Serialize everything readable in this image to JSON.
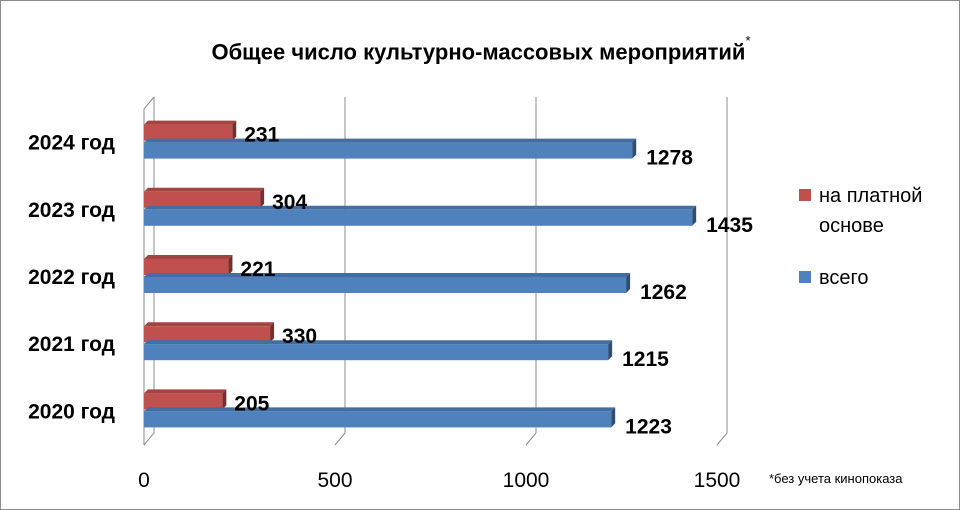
{
  "chart_data": {
    "type": "bar",
    "orientation": "horizontal",
    "three_d": true,
    "title": "Общее число культурно-массовых мероприятий",
    "title_marker": "*",
    "footnote": "*без учета кинопоказа",
    "categories": [
      "2020 год",
      "2021 год",
      "2022 год",
      "2023 год",
      "2024 год"
    ],
    "series": [
      {
        "name": "на платной основе",
        "color": "#c0504d",
        "values": [
          205,
          330,
          221,
          304,
          231
        ]
      },
      {
        "name": "всего",
        "color": "#4f81bd",
        "values": [
          1223,
          1215,
          1262,
          1435,
          1278
        ]
      }
    ],
    "xlim": [
      0,
      1500
    ],
    "xticks": [
      0,
      500,
      1000,
      1500
    ],
    "grid": true,
    "data_labels": true,
    "legend": "right"
  }
}
